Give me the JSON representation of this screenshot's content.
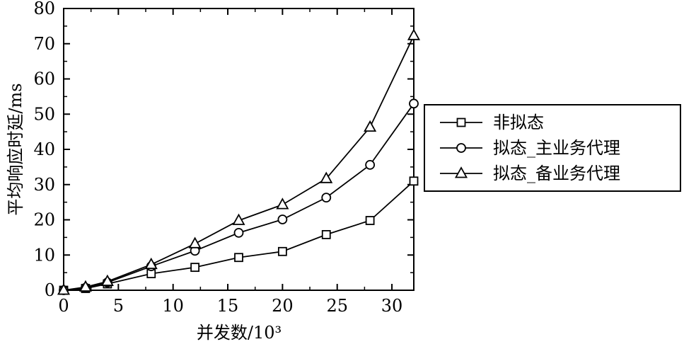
{
  "chart_data": {
    "type": "line",
    "xlabel": "并发数/10³",
    "ylabel": "平均响应时延/ms",
    "x": [
      0,
      2,
      4,
      8,
      12,
      16,
      20,
      24,
      28,
      32
    ],
    "xlim": [
      0,
      32
    ],
    "ylim": [
      0,
      80
    ],
    "xticks": [
      0,
      5,
      10,
      15,
      20,
      25,
      30
    ],
    "yticks": [
      0,
      10,
      20,
      30,
      40,
      50,
      60,
      70,
      80
    ],
    "grid": false,
    "legend_position": "right",
    "series": [
      {
        "name": "非拟态",
        "marker": "square",
        "values": [
          0,
          0.5,
          1.8,
          4.7,
          6.5,
          9.3,
          11.0,
          15.8,
          19.8,
          31.0
        ]
      },
      {
        "name": "拟态_主业务代理",
        "marker": "circle",
        "values": [
          0,
          0.7,
          2.2,
          6.8,
          11.2,
          16.3,
          20.1,
          26.3,
          35.6,
          53.0
        ]
      },
      {
        "name": "拟态_备业务代理",
        "marker": "triangle",
        "values": [
          0,
          0.9,
          2.5,
          7.3,
          13.2,
          19.8,
          24.3,
          31.7,
          46.3,
          72.3
        ]
      }
    ]
  }
}
